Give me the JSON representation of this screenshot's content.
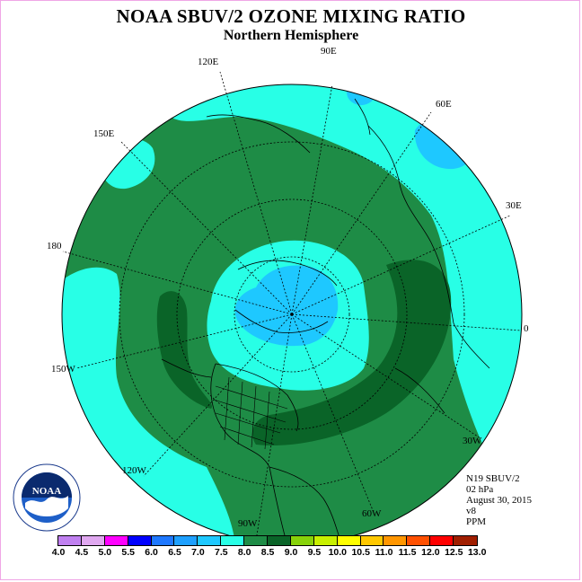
{
  "title": "NOAA SBUV/2 OZONE MIXING RATIO",
  "subtitle": "Northern Hemisphere",
  "longitude_labels": [
    "90E",
    "60E",
    "30E",
    "0",
    "30W",
    "60W",
    "90W",
    "120W",
    "150W",
    "180",
    "150E",
    "120E"
  ],
  "info": {
    "satellite": "N19 SBUV/2",
    "pressure": "02 hPa",
    "date": "August 30, 2015",
    "version": "v8",
    "units": "PPM"
  },
  "logo_text": "NOAA",
  "colorbar": {
    "ticks": [
      "4.0",
      "4.5",
      "5.0",
      "5.5",
      "6.0",
      "6.5",
      "7.0",
      "7.5",
      "8.0",
      "8.5",
      "9.0",
      "9.5",
      "10.0",
      "10.5",
      "11.0",
      "11.5",
      "12.0",
      "12.5",
      "13.0"
    ],
    "colors": [
      "#c080f0",
      "#e0a8f0",
      "#ff00ff",
      "#0000ff",
      "#1e78ff",
      "#1ea0ff",
      "#1ec8ff",
      "#28ffe6",
      "#1e8c46",
      "#0a6428",
      "#87d20a",
      "#c8f000",
      "#ffff00",
      "#ffc800",
      "#ff9600",
      "#ff5000",
      "#ff0000",
      "#a01e00"
    ]
  },
  "colors": {
    "background": "#ffffff",
    "ocean_shade": "#28ffe6",
    "land_shade": "#1e8c46",
    "dark_shade": "#0a6428",
    "blue_shade": "#1ec8ff",
    "frame": "#f0a6e6"
  }
}
